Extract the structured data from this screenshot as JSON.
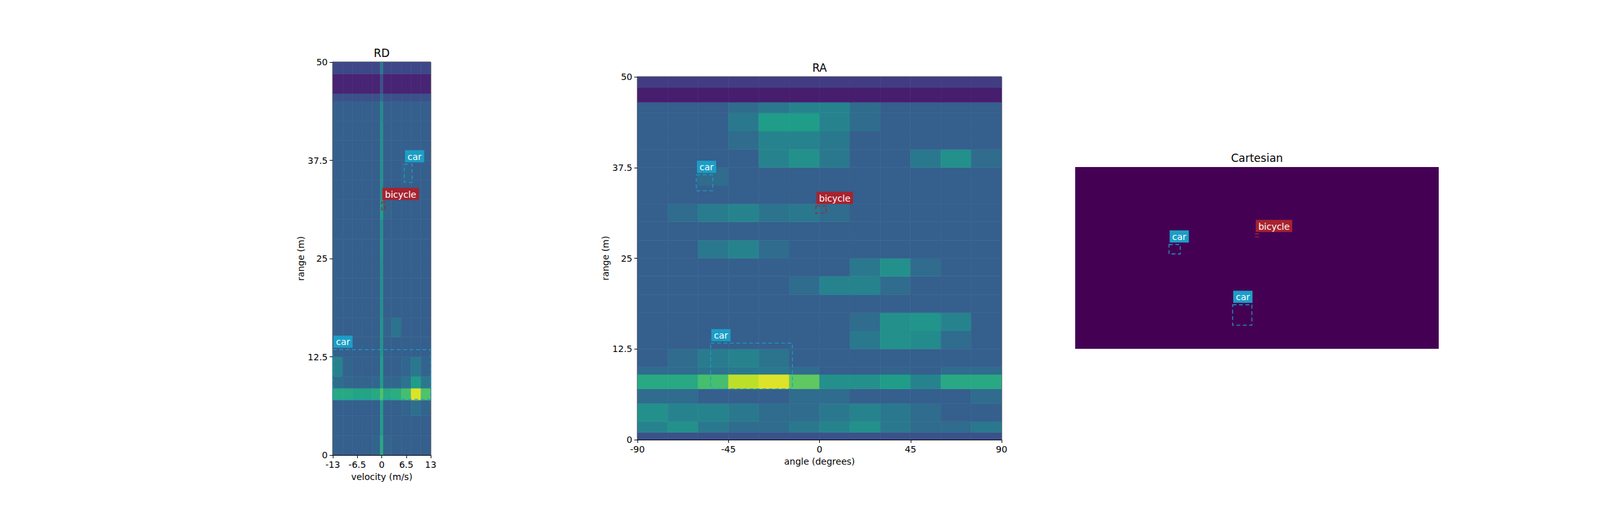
{
  "chart_data": [
    {
      "type": "heatmap",
      "title": "RD",
      "xlabel": "velocity (m/s)",
      "ylabel": "range (m)",
      "xlim": [
        -13,
        13
      ],
      "ylim": [
        0,
        50
      ],
      "xticks": [
        -13,
        -6.5,
        0,
        6.5,
        13
      ],
      "yticks": [
        0,
        12.5,
        25,
        37.5,
        50
      ],
      "value_range": [
        0,
        1
      ],
      "x_edges": [
        -13,
        -10.4,
        -7.8,
        -5.2,
        -2.6,
        -0.4,
        0.4,
        2.6,
        5.2,
        7.8,
        10.4,
        13
      ],
      "y_edges": [
        0,
        2.5,
        5,
        7,
        8.5,
        10,
        12.5,
        15,
        17.5,
        20,
        22.5,
        25,
        27.5,
        30,
        32.5,
        35,
        37.5,
        40,
        42.5,
        45,
        46,
        48.5,
        50
      ],
      "cells": [
        [
          0.3,
          0.3,
          0.3,
          0.3,
          0.32,
          0.6,
          0.32,
          0.3,
          0.3,
          0.3,
          0.3
        ],
        [
          0.3,
          0.3,
          0.3,
          0.3,
          0.3,
          0.55,
          0.3,
          0.3,
          0.3,
          0.3,
          0.3
        ],
        [
          0.3,
          0.3,
          0.3,
          0.3,
          0.3,
          0.55,
          0.3,
          0.3,
          0.32,
          0.36,
          0.32
        ],
        [
          0.6,
          0.6,
          0.58,
          0.58,
          0.6,
          0.72,
          0.6,
          0.62,
          0.7,
          0.95,
          0.72
        ],
        [
          0.35,
          0.33,
          0.32,
          0.32,
          0.33,
          0.55,
          0.33,
          0.33,
          0.38,
          0.55,
          0.4
        ],
        [
          0.45,
          0.32,
          0.3,
          0.3,
          0.3,
          0.55,
          0.3,
          0.3,
          0.33,
          0.4,
          0.32
        ],
        [
          0.3,
          0.3,
          0.3,
          0.3,
          0.3,
          0.52,
          0.3,
          0.3,
          0.3,
          0.3,
          0.3
        ],
        [
          0.3,
          0.3,
          0.3,
          0.3,
          0.3,
          0.52,
          0.32,
          0.38,
          0.3,
          0.3,
          0.3
        ],
        [
          0.3,
          0.3,
          0.3,
          0.3,
          0.3,
          0.5,
          0.3,
          0.3,
          0.3,
          0.3,
          0.3
        ],
        [
          0.3,
          0.3,
          0.3,
          0.3,
          0.3,
          0.5,
          0.3,
          0.3,
          0.3,
          0.3,
          0.3
        ],
        [
          0.3,
          0.3,
          0.3,
          0.3,
          0.3,
          0.5,
          0.3,
          0.3,
          0.3,
          0.3,
          0.3
        ],
        [
          0.3,
          0.3,
          0.3,
          0.3,
          0.3,
          0.52,
          0.3,
          0.3,
          0.3,
          0.3,
          0.3
        ],
        [
          0.3,
          0.3,
          0.3,
          0.3,
          0.3,
          0.5,
          0.3,
          0.3,
          0.3,
          0.3,
          0.3
        ],
        [
          0.3,
          0.3,
          0.3,
          0.3,
          0.3,
          0.55,
          0.32,
          0.3,
          0.3,
          0.3,
          0.3
        ],
        [
          0.3,
          0.3,
          0.3,
          0.3,
          0.3,
          0.5,
          0.3,
          0.3,
          0.3,
          0.3,
          0.3
        ],
        [
          0.3,
          0.3,
          0.3,
          0.3,
          0.3,
          0.5,
          0.3,
          0.3,
          0.32,
          0.3,
          0.3
        ],
        [
          0.3,
          0.3,
          0.3,
          0.3,
          0.3,
          0.5,
          0.3,
          0.3,
          0.3,
          0.3,
          0.3
        ],
        [
          0.3,
          0.3,
          0.3,
          0.3,
          0.3,
          0.5,
          0.3,
          0.3,
          0.3,
          0.3,
          0.3
        ],
        [
          0.3,
          0.3,
          0.3,
          0.3,
          0.3,
          0.48,
          0.3,
          0.3,
          0.3,
          0.3,
          0.3
        ],
        [
          0.25,
          0.25,
          0.25,
          0.25,
          0.25,
          0.35,
          0.25,
          0.25,
          0.25,
          0.25,
          0.25
        ],
        [
          0.1,
          0.1,
          0.1,
          0.1,
          0.1,
          0.25,
          0.1,
          0.1,
          0.1,
          0.1,
          0.1
        ],
        [
          0.22,
          0.22,
          0.22,
          0.22,
          0.22,
          0.4,
          0.22,
          0.22,
          0.22,
          0.22,
          0.22
        ]
      ],
      "boxes": [
        {
          "label": "car",
          "color": "#1c9ec6",
          "line_style": "dashed",
          "x": [
            6,
            8.1
          ],
          "y": [
            34.7,
            37
          ]
        },
        {
          "label": "bicycle",
          "color": "#a8222f",
          "line_style": "dashed",
          "x": [
            0,
            0.8
          ],
          "y": [
            31.2,
            32.2
          ]
        },
        {
          "label": "car",
          "color": "#1c9ec6",
          "line_style": "dashed",
          "x": [
            -13,
            13
          ],
          "y": [
            7.1,
            13.4
          ]
        }
      ]
    },
    {
      "type": "heatmap",
      "title": "RA",
      "xlabel": "angle (degrees)",
      "ylabel": "range (m)",
      "xlim": [
        -90,
        90
      ],
      "ylim": [
        0,
        50
      ],
      "xticks": [
        -90,
        -45,
        0,
        45,
        90
      ],
      "yticks": [
        0,
        12.5,
        25,
        37.5,
        50
      ],
      "value_range": [
        0,
        1
      ],
      "x_edges": [
        -90,
        -75,
        -60,
        -45,
        -30,
        -15,
        0,
        15,
        30,
        45,
        60,
        75,
        90
      ],
      "y_edges": [
        0,
        1,
        2.5,
        5,
        7,
        9,
        10,
        12.5,
        15,
        17.5,
        20,
        22.5,
        25,
        27.5,
        30,
        32.5,
        35,
        37.5,
        40,
        42.5,
        45,
        46.5,
        48.5,
        50
      ],
      "cells": [
        [
          0.25,
          0.25,
          0.25,
          0.25,
          0.25,
          0.25,
          0.25,
          0.25,
          0.25,
          0.25,
          0.25,
          0.25
        ],
        [
          0.45,
          0.5,
          0.4,
          0.35,
          0.35,
          0.4,
          0.45,
          0.5,
          0.4,
          0.35,
          0.35,
          0.4
        ],
        [
          0.5,
          0.45,
          0.45,
          0.4,
          0.35,
          0.35,
          0.4,
          0.45,
          0.4,
          0.35,
          0.3,
          0.3
        ],
        [
          0.35,
          0.35,
          0.3,
          0.3,
          0.3,
          0.35,
          0.35,
          0.3,
          0.3,
          0.3,
          0.3,
          0.35
        ],
        [
          0.6,
          0.6,
          0.7,
          0.9,
          0.95,
          0.75,
          0.5,
          0.5,
          0.55,
          0.45,
          0.6,
          0.6
        ],
        [
          0.35,
          0.35,
          0.38,
          0.4,
          0.4,
          0.35,
          0.3,
          0.3,
          0.32,
          0.3,
          0.35,
          0.35
        ],
        [
          0.3,
          0.35,
          0.42,
          0.45,
          0.38,
          0.3,
          0.3,
          0.3,
          0.3,
          0.3,
          0.3,
          0.3
        ],
        [
          0.3,
          0.3,
          0.3,
          0.3,
          0.3,
          0.3,
          0.3,
          0.4,
          0.5,
          0.48,
          0.35,
          0.3
        ],
        [
          0.3,
          0.3,
          0.3,
          0.3,
          0.3,
          0.3,
          0.3,
          0.35,
          0.5,
          0.52,
          0.45,
          0.3
        ],
        [
          0.3,
          0.3,
          0.3,
          0.3,
          0.3,
          0.3,
          0.3,
          0.3,
          0.3,
          0.3,
          0.3,
          0.3
        ],
        [
          0.3,
          0.3,
          0.3,
          0.3,
          0.3,
          0.35,
          0.45,
          0.45,
          0.35,
          0.3,
          0.3,
          0.3
        ],
        [
          0.3,
          0.3,
          0.3,
          0.3,
          0.3,
          0.3,
          0.3,
          0.4,
          0.5,
          0.35,
          0.3,
          0.3
        ],
        [
          0.3,
          0.3,
          0.4,
          0.45,
          0.35,
          0.3,
          0.3,
          0.3,
          0.3,
          0.3,
          0.3,
          0.3
        ],
        [
          0.3,
          0.3,
          0.3,
          0.3,
          0.3,
          0.3,
          0.3,
          0.3,
          0.3,
          0.3,
          0.3,
          0.3
        ],
        [
          0.3,
          0.35,
          0.42,
          0.45,
          0.38,
          0.4,
          0.35,
          0.3,
          0.3,
          0.3,
          0.3,
          0.3
        ],
        [
          0.3,
          0.3,
          0.3,
          0.3,
          0.3,
          0.3,
          0.3,
          0.3,
          0.3,
          0.3,
          0.3,
          0.3
        ],
        [
          0.3,
          0.3,
          0.35,
          0.3,
          0.3,
          0.3,
          0.3,
          0.3,
          0.3,
          0.3,
          0.3,
          0.3
        ],
        [
          0.3,
          0.3,
          0.3,
          0.3,
          0.45,
          0.5,
          0.4,
          0.3,
          0.3,
          0.4,
          0.5,
          0.35
        ],
        [
          0.3,
          0.3,
          0.3,
          0.35,
          0.45,
          0.45,
          0.4,
          0.3,
          0.3,
          0.3,
          0.3,
          0.3
        ],
        [
          0.3,
          0.3,
          0.3,
          0.4,
          0.55,
          0.55,
          0.45,
          0.35,
          0.3,
          0.3,
          0.3,
          0.3
        ],
        [
          0.3,
          0.3,
          0.3,
          0.35,
          0.4,
          0.45,
          0.45,
          0.35,
          0.3,
          0.3,
          0.3,
          0.3
        ],
        [
          0.08,
          0.08,
          0.08,
          0.08,
          0.08,
          0.08,
          0.08,
          0.08,
          0.08,
          0.08,
          0.08,
          0.08
        ],
        [
          0.18,
          0.18,
          0.18,
          0.18,
          0.18,
          0.18,
          0.18,
          0.18,
          0.18,
          0.18,
          0.18,
          0.18
        ]
      ],
      "boxes": [
        {
          "label": "car",
          "color": "#1c9ec6",
          "line_style": "dashed",
          "x": [
            -60.9,
            -52.8
          ],
          "y": [
            34.3,
            36.5
          ]
        },
        {
          "label": "bicycle",
          "color": "#a8222f",
          "line_style": "dashed",
          "x": [
            -1.8,
            3.3
          ],
          "y": [
            31.2,
            32.2
          ]
        },
        {
          "label": "car",
          "color": "#1c9ec6",
          "line_style": "dashed",
          "x": [
            -53.8,
            -13.4
          ],
          "y": [
            7,
            13.3
          ]
        }
      ]
    },
    {
      "type": "heatmap",
      "title": "Cartesian",
      "tick_labels": false,
      "xlim": [
        -50,
        50
      ],
      "ylim": [
        0,
        50
      ],
      "value_range": [
        0,
        1
      ],
      "x_edges": [
        -50,
        50
      ],
      "y_edges": [
        0,
        50
      ],
      "cells": [
        [
          0
        ]
      ],
      "boxes": [
        {
          "label": "car",
          "color": "#1c9ec6",
          "line_style": "dashed",
          "x": [
            -24.2,
            -21.1
          ],
          "y": [
            26.1,
            28.7
          ]
        },
        {
          "label": "bicycle",
          "color": "#a8222f",
          "line_style": "dashed",
          "x": [
            -0.5,
            0.5
          ],
          "y": [
            30.8,
            31.6
          ]
        },
        {
          "label": "car",
          "color": "#1c9ec6",
          "line_style": "dashed",
          "x": [
            -6.7,
            -1.4
          ],
          "y": [
            6.5,
            12.1
          ]
        }
      ]
    }
  ]
}
